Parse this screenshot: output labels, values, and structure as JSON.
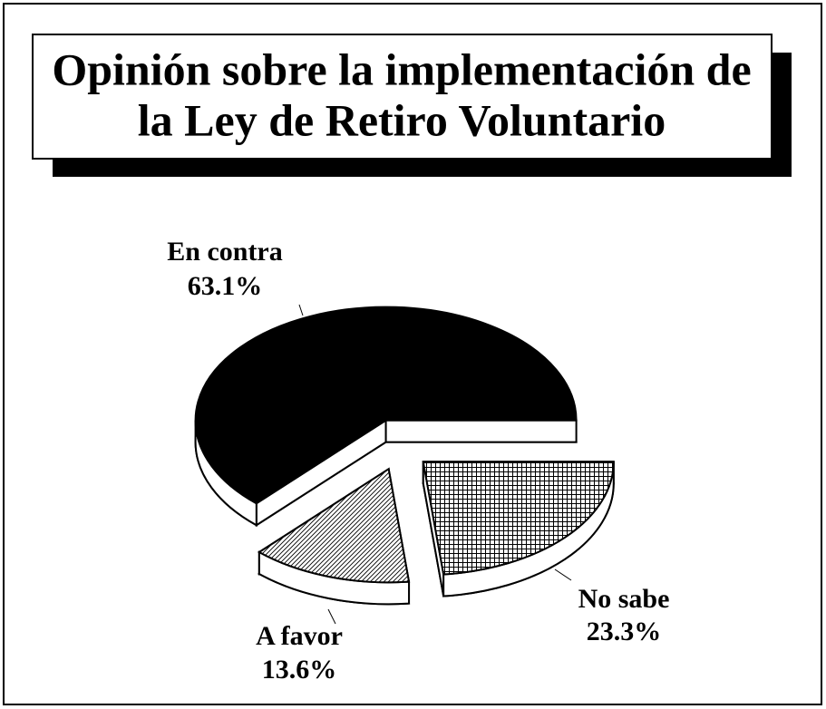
{
  "chart_data": {
    "type": "pie",
    "title": [
      "Opinión sobre la implementación de",
      "la Ley de Retiro Voluntario"
    ],
    "categories": [
      "En contra",
      "No sabe",
      "A favor"
    ],
    "values": [
      63.1,
      23.3,
      13.6
    ],
    "value_labels": [
      "63.1%",
      "23.3%",
      "13.6%"
    ],
    "colors": [
      "#000000",
      "#000000",
      "#000000"
    ],
    "patterns": [
      "solid",
      "crosshatch",
      "diagonal"
    ]
  }
}
